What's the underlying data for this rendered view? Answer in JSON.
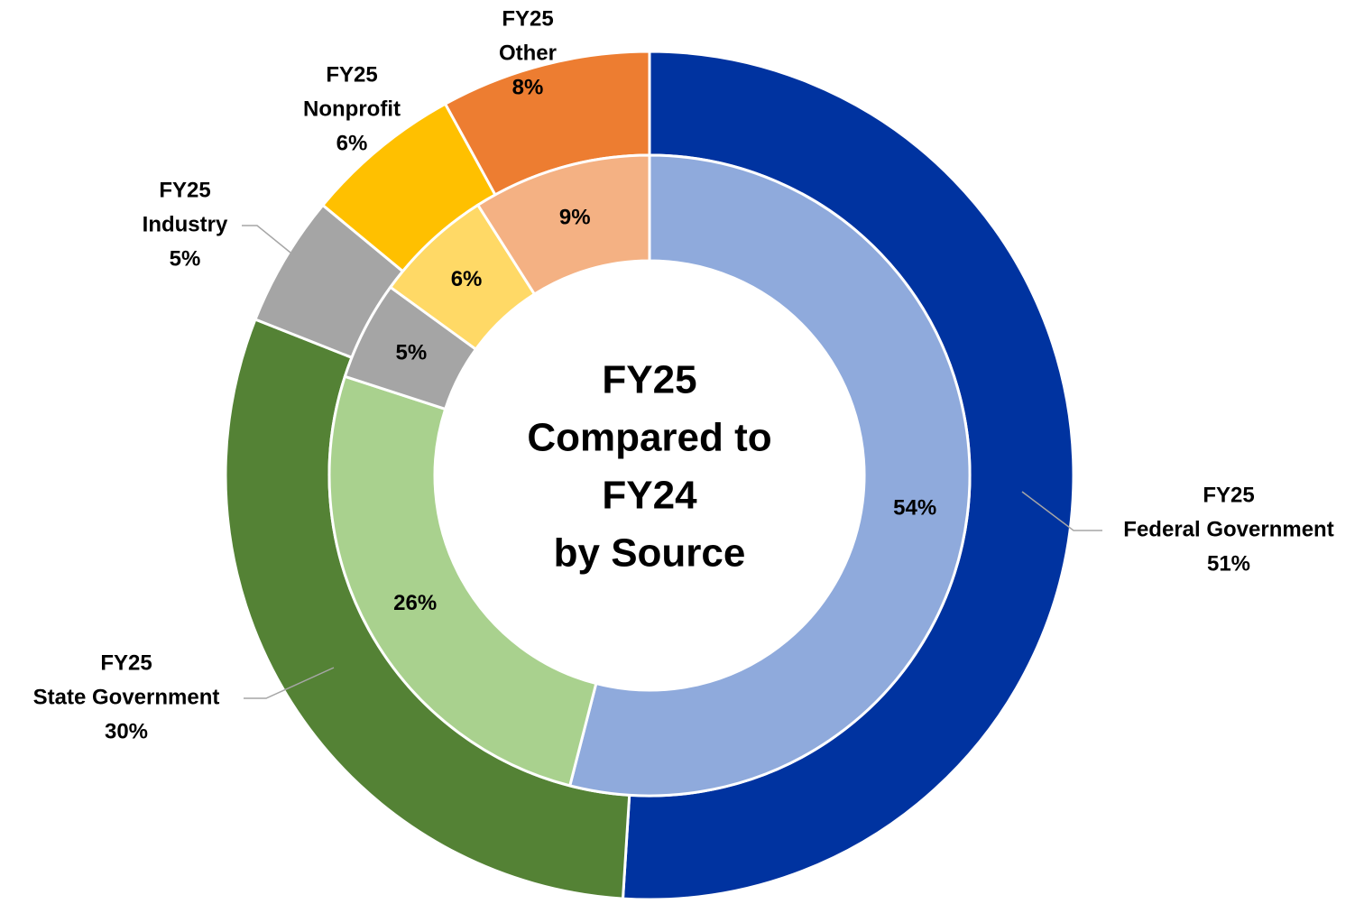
{
  "chart_data": {
    "type": "donut",
    "title": [
      "FY25",
      "Compared to",
      "FY24",
      "by Source"
    ],
    "categories": [
      "Federal Government",
      "State Government",
      "Industry",
      "Nonprofit",
      "Other"
    ],
    "series": [
      {
        "name": "FY25",
        "values": [
          51,
          30,
          5,
          6,
          8
        ],
        "value_labels": [
          "51%",
          "30%",
          "5%",
          "6%",
          "8%"
        ],
        "colors": [
          "#0033a0",
          "#548235",
          "#a5a5a5",
          "#ffc000",
          "#ed7d31"
        ]
      },
      {
        "name": "FY24",
        "values": [
          54,
          26,
          5,
          6,
          9
        ],
        "value_labels": [
          "54%",
          "26%",
          "5%",
          "6%",
          "9%"
        ],
        "colors": [
          "#8faadc",
          "#a9d18e",
          "#a5a5a5",
          "#ffd966",
          "#f4b183"
        ]
      }
    ]
  }
}
